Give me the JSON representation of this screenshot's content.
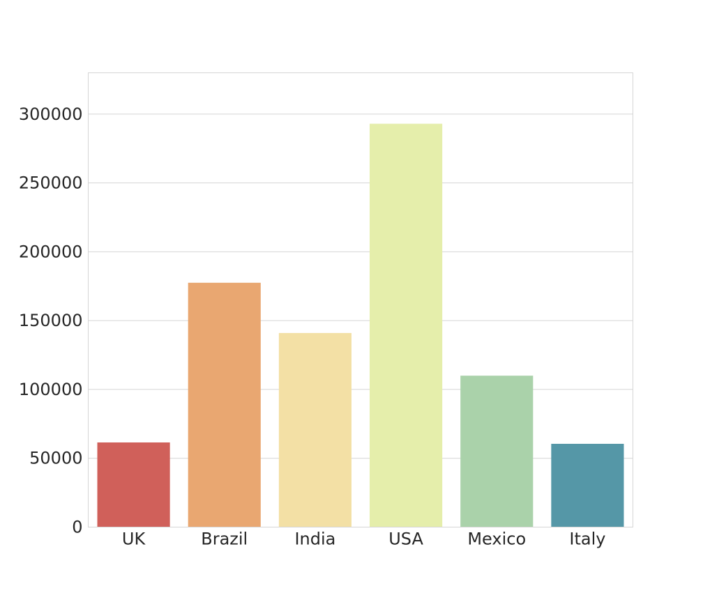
{
  "chart_data": {
    "type": "bar",
    "title": "",
    "xlabel": "",
    "ylabel": "",
    "categories": [
      "UK",
      "Brazil",
      "India",
      "USA",
      "Mexico",
      "Italy"
    ],
    "values": [
      61500,
      177500,
      141000,
      293000,
      110000,
      60500
    ],
    "colors": [
      "#d0605a",
      "#e9a771",
      "#f3e0a5",
      "#e5eeab",
      "#aad2aa",
      "#5597a7"
    ],
    "ylim": [
      0,
      330000
    ],
    "yticks": [
      0,
      50000,
      100000,
      150000,
      200000,
      250000,
      300000
    ],
    "ytick_labels": [
      "0",
      "50000",
      "100000",
      "150000",
      "200000",
      "250000",
      "300000"
    ],
    "grid": "horizontal",
    "legend": "none"
  }
}
